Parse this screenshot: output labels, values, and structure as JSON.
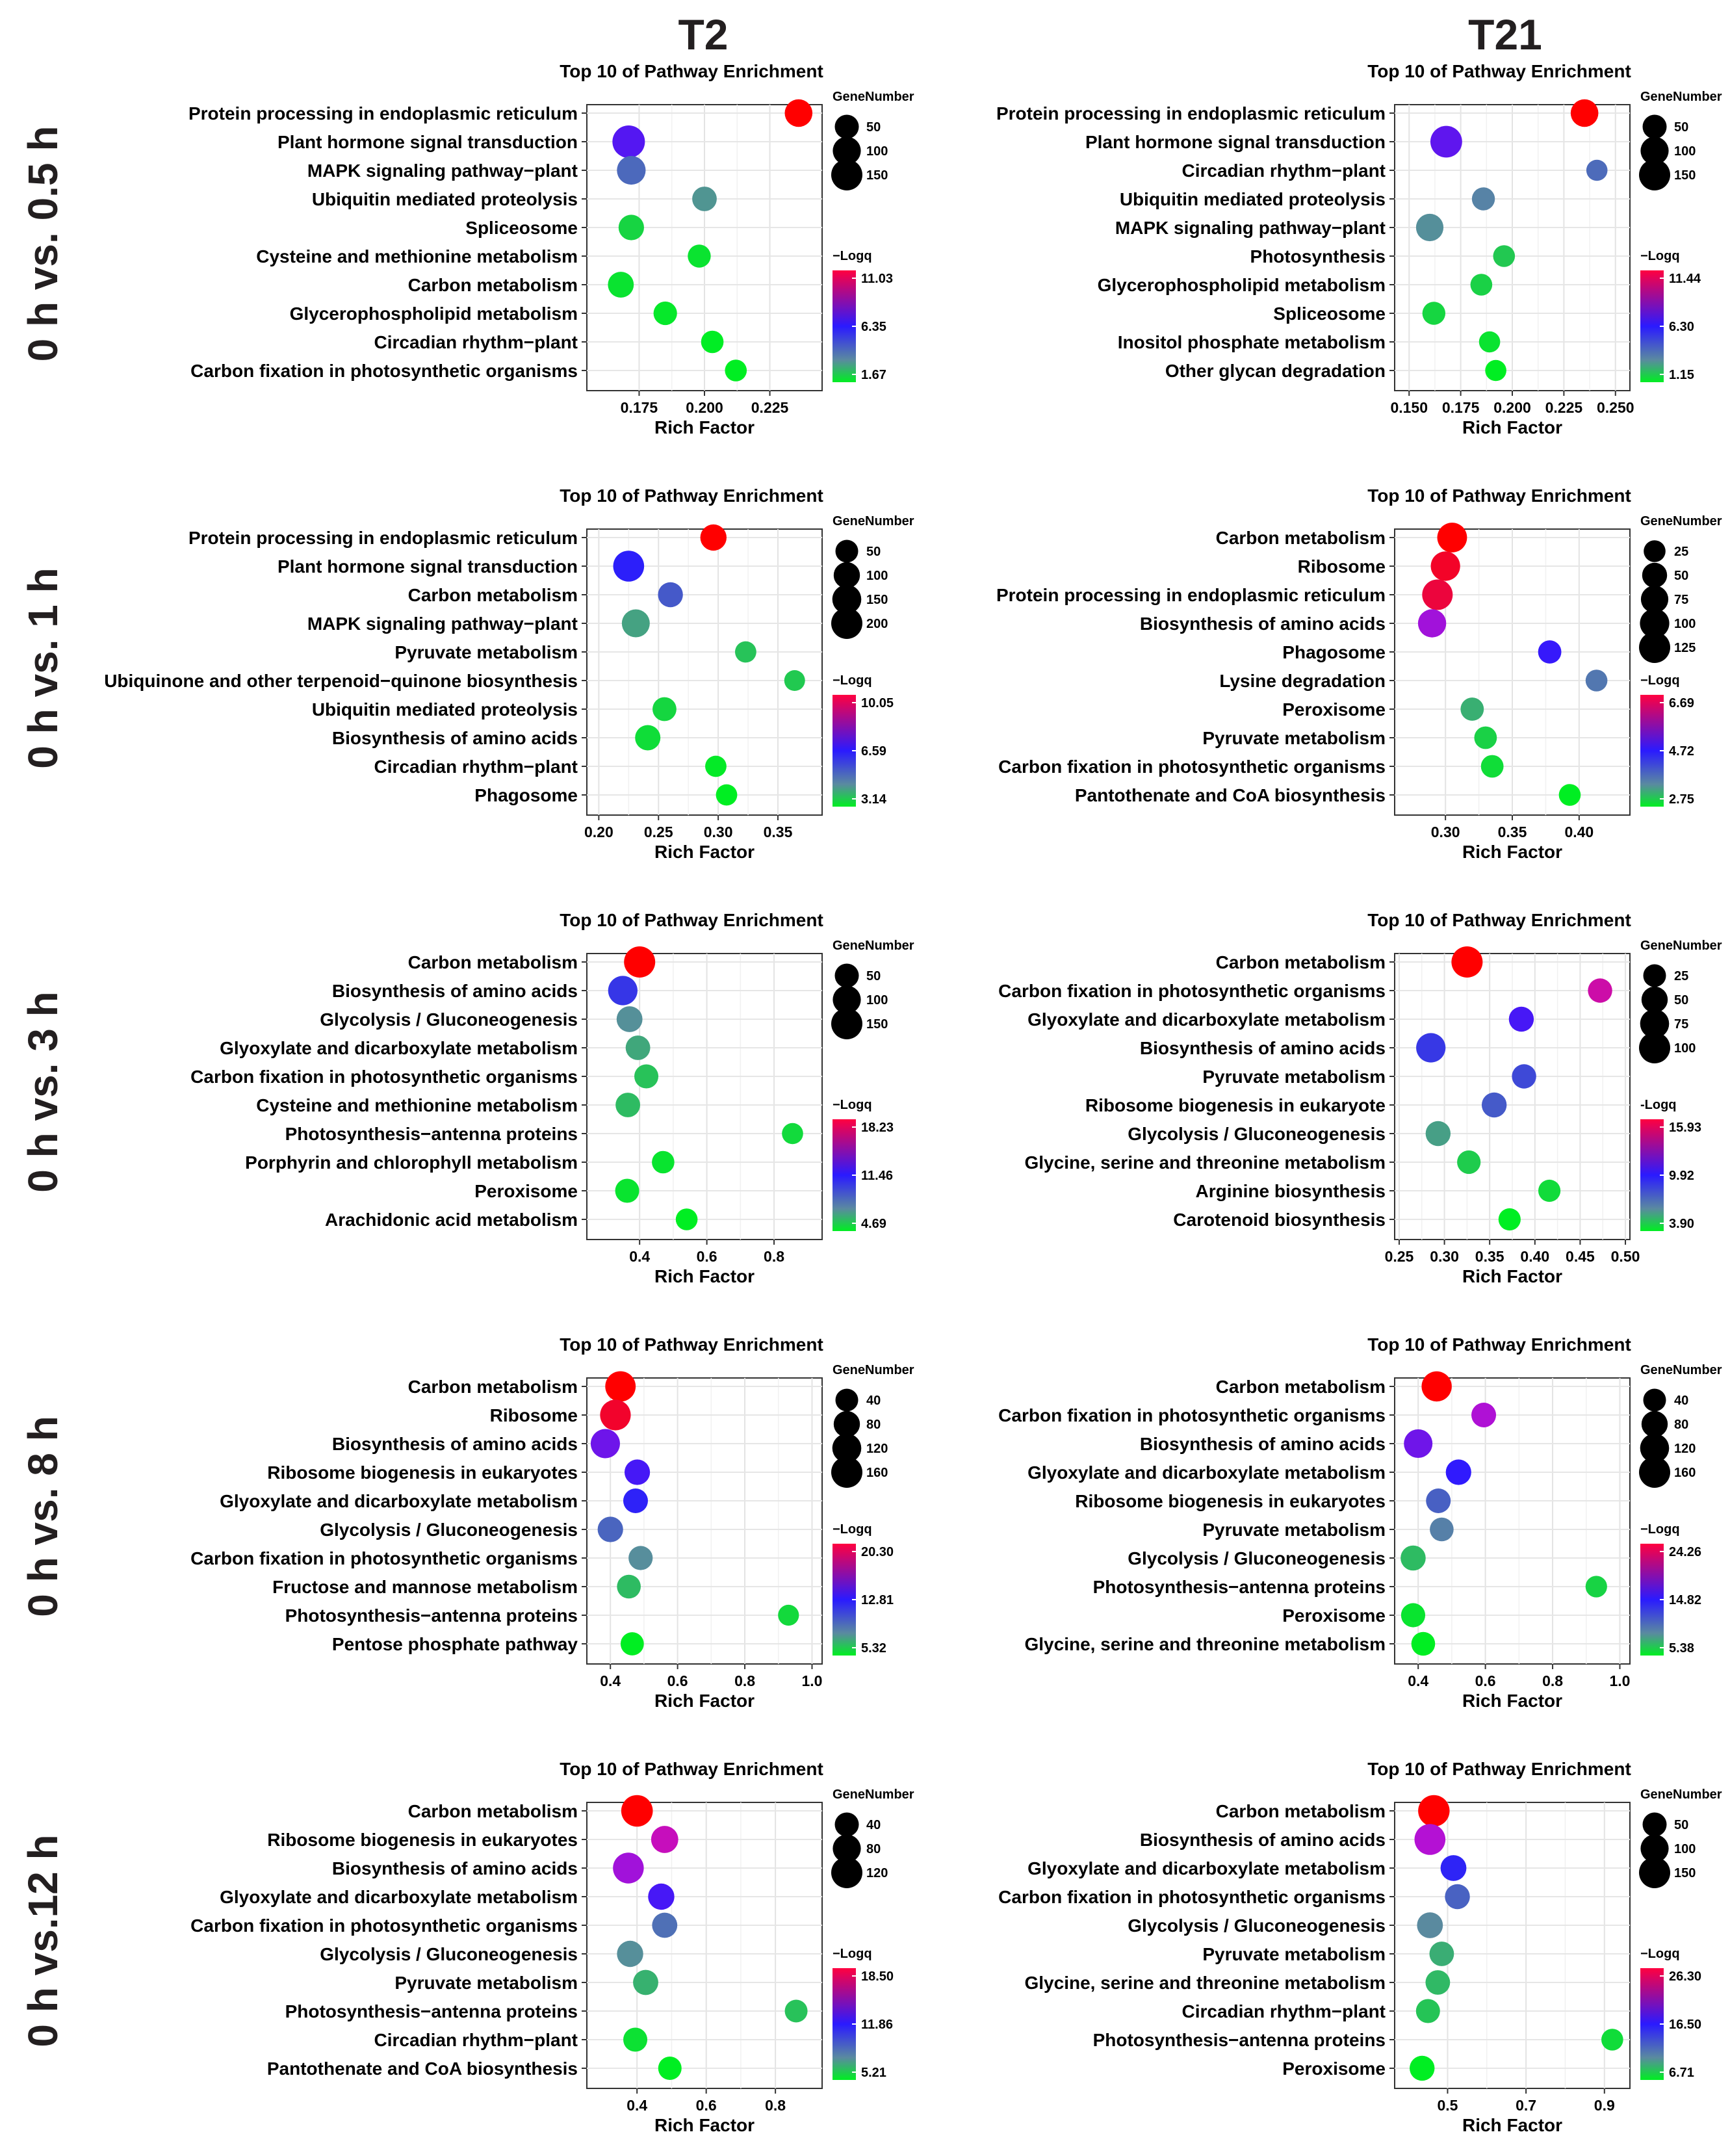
{
  "column_headers": [
    "T2",
    "T21"
  ],
  "row_labels": [
    "0 h vs. 0.5 h",
    "0 h vs. 1 h",
    "0 h vs. 3 h",
    "0 h vs. 8 h",
    "0 h vs.12 h"
  ],
  "colors": {
    "high": "#ff0000",
    "mid": "#2020ff",
    "low": "#00ee22",
    "grid": "#e6e6e6",
    "text": "#000000"
  },
  "chart_data": [
    {
      "type": "scatter",
      "title": "Top 10 of Pathway Enrichment",
      "xlabel": "Rich Factor",
      "size_legend_title": "GeneNumber",
      "color_legend_title": "−Logq",
      "xlim": [
        0.155,
        0.245
      ],
      "xticks": [
        0.175,
        0.2,
        0.225
      ],
      "xtick_labels": [
        "0.175",
        "0.200",
        "0.225"
      ],
      "size_legend": [
        50,
        100,
        150
      ],
      "color_range": [
        1.67,
        11.03
      ],
      "color_ticks": [
        "11.03",
        "6.35",
        "1.67"
      ],
      "pathways": [
        "Protein processing in endoplasmic reticulum",
        "Plant hormone signal transduction",
        "MAPK signaling pathway−plant",
        "Ubiquitin mediated proteolysis",
        "Spliceosome",
        "Cysteine and methionine metabolism",
        "Carbon metabolism",
        "Glycerophospholipid metabolism",
        "Circadian rhythm−plant",
        "Carbon fixation in photosynthetic organisms"
      ],
      "x": [
        0.236,
        0.171,
        0.172,
        0.2,
        0.172,
        0.198,
        0.168,
        0.185,
        0.203,
        0.212
      ],
      "gene_number": [
        95,
        175,
        110,
        55,
        65,
        40,
        70,
        45,
        35,
        30
      ],
      "logq": [
        11.03,
        7.0,
        4.5,
        3.5,
        2.2,
        1.9,
        1.9,
        1.8,
        1.7,
        1.67
      ]
    },
    {
      "type": "scatter",
      "title": "Top 10 of Pathway Enrichment",
      "xlabel": "Rich Factor",
      "size_legend_title": "GeneNumber",
      "color_legend_title": "−Logq",
      "xlim": [
        0.143,
        0.257
      ],
      "xticks": [
        0.15,
        0.175,
        0.2,
        0.225,
        0.25
      ],
      "xtick_labels": [
        "0.150",
        "0.175",
        "0.200",
        "0.225",
        "0.250"
      ],
      "size_legend": [
        50,
        100,
        150
      ],
      "color_range": [
        1.15,
        11.44
      ],
      "color_ticks": [
        "11.44",
        "6.30",
        "1.15"
      ],
      "pathways": [
        "Protein processing in endoplasmic reticulum",
        "Plant hormone signal transduction",
        "Circadian rhythm−plant",
        "Ubiquitin mediated proteolysis",
        "MAPK signaling pathway−plant",
        "Photosynthesis",
        "Glycerophospholipid metabolism",
        "Spliceosome",
        "Inositol phosphate metabolism",
        "Other glycan degradation"
      ],
      "x": [
        0.235,
        0.168,
        0.241,
        0.186,
        0.16,
        0.196,
        0.185,
        0.162,
        0.189,
        0.192
      ],
      "gene_number": [
        95,
        160,
        25,
        40,
        90,
        30,
        30,
        40,
        25,
        25
      ],
      "logq": [
        11.44,
        7.2,
        4.2,
        3.6,
        3.3,
        2.0,
        1.8,
        1.7,
        1.4,
        1.15
      ]
    },
    {
      "type": "scatter",
      "title": "Top 10 of Pathway Enrichment",
      "xlabel": "Rich Factor",
      "size_legend_title": "GeneNumber",
      "color_legend_title": "−Logq",
      "xlim": [
        0.19,
        0.387
      ],
      "xticks": [
        0.2,
        0.25,
        0.3,
        0.35
      ],
      "xtick_labels": [
        "0.20",
        "0.25",
        "0.30",
        "0.35"
      ],
      "size_legend": [
        50,
        100,
        150,
        200
      ],
      "color_range": [
        3.14,
        10.05
      ],
      "color_ticks": [
        "10.05",
        "6.59",
        "3.14"
      ],
      "pathways": [
        "Protein processing in endoplasmic reticulum",
        "Plant hormone signal transduction",
        "Carbon metabolism",
        "MAPK signaling pathway−plant",
        "Pyruvate metabolism",
        "Ubiquinone and other terpenoid−quinone biosynthesis",
        "Ubiquitin mediated proteolysis",
        "Biosynthesis of amino acids",
        "Circadian rhythm−plant",
        "Phagosome"
      ],
      "x": [
        0.296,
        0.225,
        0.26,
        0.231,
        0.323,
        0.364,
        0.255,
        0.241,
        0.298,
        0.307
      ],
      "gene_number": [
        100,
        195,
        80,
        130,
        35,
        30,
        65,
        85,
        35,
        35
      ],
      "logq": [
        10.05,
        6.5,
        5.5,
        4.3,
        3.8,
        3.7,
        3.5,
        3.4,
        3.2,
        3.14
      ]
    },
    {
      "type": "scatter",
      "title": "Top 10 of Pathway Enrichment",
      "xlabel": "Rich Factor",
      "size_legend_title": "GeneNumber",
      "color_legend_title": "−Logq",
      "xlim": [
        0.262,
        0.438
      ],
      "xticks": [
        0.3,
        0.35,
        0.4
      ],
      "xtick_labels": [
        "0.30",
        "0.35",
        "0.40"
      ],
      "size_legend": [
        25,
        50,
        75,
        100,
        125
      ],
      "color_range": [
        2.75,
        6.69
      ],
      "color_ticks": [
        "6.69",
        "4.72",
        "2.75"
      ],
      "pathways": [
        "Carbon metabolism",
        "Ribosome",
        "Protein processing in endoplasmic reticulum",
        "Biosynthesis of amino acids",
        "Phagosome",
        "Lysine degradation",
        "Peroxisome",
        "Pyruvate metabolism",
        "Carbon fixation in photosynthetic organisms",
        "Pantothenate and CoA biosynthesis"
      ],
      "x": [
        0.305,
        0.3,
        0.294,
        0.29,
        0.378,
        0.413,
        0.32,
        0.33,
        0.335,
        0.393
      ],
      "gene_number": [
        105,
        100,
        115,
        85,
        35,
        25,
        35,
        30,
        30,
        25
      ],
      "logq": [
        6.69,
        6.5,
        6.4,
        5.5,
        4.8,
        3.8,
        3.3,
        3.0,
        2.9,
        2.75
      ]
    },
    {
      "type": "scatter",
      "title": "Top 10 of Pathway Enrichment",
      "xlabel": "Rich Factor",
      "size_legend_title": "GeneNumber",
      "color_legend_title": "−Logq",
      "xlim": [
        0.243,
        0.943
      ],
      "xticks": [
        0.4,
        0.6,
        0.8
      ],
      "xtick_labels": [
        "0.4",
        "0.6",
        "0.8"
      ],
      "size_legend": [
        50,
        100,
        150
      ],
      "color_range": [
        4.69,
        18.23
      ],
      "color_ticks": [
        "18.23",
        "11.46",
        "4.69"
      ],
      "pathways": [
        "Carbon metabolism",
        "Biosynthesis of amino acids",
        "Glycolysis / Gluconeogenesis",
        "Glyoxylate and dicarboxylate metabolism",
        "Carbon fixation in photosynthetic organisms",
        "Cysteine and methionine metabolism",
        "Photosynthesis−antenna proteins",
        "Porphyrin and chlorophyll metabolism",
        "Peroxisome",
        "Arachidonic acid metabolism"
      ],
      "x": [
        0.4,
        0.35,
        0.37,
        0.395,
        0.42,
        0.365,
        0.855,
        0.47,
        0.363,
        0.54
      ],
      "gene_number": [
        150,
        120,
        70,
        55,
        50,
        55,
        25,
        35,
        50,
        30
      ],
      "logq": [
        18.23,
        10.5,
        7.5,
        6.8,
        6.0,
        6.2,
        5.3,
        5.0,
        5.0,
        4.69
      ]
    },
    {
      "type": "scatter",
      "title": "Top 10 of Pathway Enrichment",
      "xlabel": "Rich Factor",
      "size_legend_title": "GeneNumber",
      "color_legend_title": "-Logq",
      "xlim": [
        0.245,
        0.505
      ],
      "xticks": [
        0.25,
        0.3,
        0.35,
        0.4,
        0.45,
        0.5
      ],
      "xtick_labels": [
        "0.25",
        "0.30",
        "0.35",
        "0.40",
        "0.45",
        "0.50"
      ],
      "size_legend": [
        25,
        50,
        75,
        100
      ],
      "color_range": [
        3.9,
        15.93
      ],
      "color_ticks": [
        "15.93",
        "9.92",
        "3.90"
      ],
      "pathways": [
        "Carbon metabolism",
        "Carbon fixation in photosynthetic organisms",
        "Glyoxylate and dicarboxylate metabolism",
        "Biosynthesis of amino acids",
        "Pyruvate metabolism",
        "Ribosome biogenesis in eukaryote",
        "Glycolysis / Gluconeogenesis",
        "Glycine, serine and threonine metabolism",
        "Arginine biosynthesis",
        "Carotenoid biosynthesis"
      ],
      "x": [
        0.325,
        0.472,
        0.385,
        0.285,
        0.388,
        0.355,
        0.293,
        0.327,
        0.416,
        0.372
      ],
      "gene_number": [
        100,
        35,
        40,
        80,
        35,
        40,
        40,
        30,
        22,
        22
      ],
      "logq": [
        15.93,
        13.5,
        10.5,
        9.0,
        8.5,
        8.0,
        6.0,
        4.8,
        4.4,
        3.9
      ]
    },
    {
      "type": "scatter",
      "title": "Top 10 of Pathway Enrichment",
      "xlabel": "Rich Factor",
      "size_legend_title": "GeneNumber",
      "color_legend_title": "−Logq",
      "xlim": [
        0.33,
        1.03
      ],
      "xticks": [
        0.4,
        0.6,
        0.8,
        1.0
      ],
      "xtick_labels": [
        "0.4",
        "0.6",
        "0.8",
        "1.0"
      ],
      "size_legend": [
        40,
        80,
        120,
        160
      ],
      "color_range": [
        5.32,
        20.3
      ],
      "color_ticks": [
        "20.30",
        "12.81",
        "5.32"
      ],
      "pathways": [
        "Carbon metabolism",
        "Ribosome",
        "Biosynthesis of amino acids",
        "Ribosome biogenesis in eukaryotes",
        "Glyoxylate and dicarboxylate metabolism",
        "Glycolysis / Gluconeogenesis",
        "Carbon fixation in photosynthetic organisms",
        "Fructose and mannose metabolism",
        "Photosynthesis−antenna proteins",
        "Pentose phosphate pathway"
      ],
      "x": [
        0.43,
        0.415,
        0.385,
        0.48,
        0.475,
        0.4,
        0.49,
        0.455,
        0.93,
        0.465
      ],
      "gene_number": [
        145,
        150,
        125,
        70,
        60,
        70,
        55,
        50,
        25,
        45
      ],
      "logq": [
        20.3,
        19.5,
        14.5,
        13.5,
        12.5,
        10.0,
        8.5,
        7.0,
        6.0,
        5.32
      ]
    },
    {
      "type": "scatter",
      "title": "Top 10 of Pathway Enrichment",
      "xlabel": "Rich Factor",
      "size_legend_title": "GeneNumber",
      "color_legend_title": "−Logq",
      "xlim": [
        0.33,
        1.03
      ],
      "xticks": [
        0.4,
        0.6,
        0.8,
        1.0
      ],
      "xtick_labels": [
        "0.4",
        "0.6",
        "0.8",
        "1.0"
      ],
      "size_legend": [
        40,
        80,
        120,
        160
      ],
      "color_range": [
        5.38,
        24.26
      ],
      "color_ticks": [
        "24.26",
        "14.82",
        "5.38"
      ],
      "pathways": [
        "Carbon metabolism",
        "Carbon fixation in photosynthetic organisms",
        "Biosynthesis of amino acids",
        "Glyoxylate and dicarboxylate metabolism",
        "Ribosome biogenesis in eukaryotes",
        "Pyruvate metabolism",
        "Glycolysis / Gluconeogenesis",
        "Photosynthesis−antenna proteins",
        "Peroxisome",
        "Glycine, serine and threonine metabolism"
      ],
      "x": [
        0.455,
        0.595,
        0.4,
        0.52,
        0.46,
        0.47,
        0.385,
        0.93,
        0.385,
        0.415
      ],
      "gene_number": [
        140,
        60,
        115,
        70,
        60,
        50,
        65,
        30,
        55,
        50
      ],
      "logq": [
        24.26,
        19.0,
        17.0,
        15.0,
        11.5,
        10.0,
        7.5,
        6.5,
        5.8,
        5.38
      ]
    },
    {
      "type": "scatter",
      "title": "Top 10 of Pathway Enrichment",
      "xlabel": "Rich Factor",
      "size_legend_title": "GeneNumber",
      "color_legend_title": "−Logq",
      "xlim": [
        0.255,
        0.935
      ],
      "xticks": [
        0.4,
        0.6,
        0.8
      ],
      "xtick_labels": [
        "0.4",
        "0.6",
        "0.8"
      ],
      "size_legend": [
        40,
        80,
        120
      ],
      "color_range": [
        5.21,
        18.5
      ],
      "color_ticks": [
        "18.50",
        "11.86",
        "5.21"
      ],
      "pathways": [
        "Carbon metabolism",
        "Ribosome biogenesis in eukaryotes",
        "Biosynthesis of amino acids",
        "Glyoxylate and dicarboxylate metabolism",
        "Carbon fixation in photosynthetic organisms",
        "Glycolysis / Gluconeogenesis",
        "Pyruvate metabolism",
        "Photosynthesis−antenna proteins",
        "Circadian rhythm−plant",
        "Pantothenate and CoA biosynthesis"
      ],
      "x": [
        0.4,
        0.48,
        0.375,
        0.47,
        0.48,
        0.38,
        0.425,
        0.86,
        0.395,
        0.495
      ],
      "gene_number": [
        125,
        70,
        115,
        60,
        50,
        60,
        50,
        30,
        40,
        35
      ],
      "logq": [
        18.5,
        15.5,
        14.5,
        12.5,
        9.0,
        8.0,
        7.0,
        6.5,
        5.6,
        5.21
      ]
    },
    {
      "type": "scatter",
      "title": "Top 10 of Pathway Enrichment",
      "xlabel": "Rich Factor",
      "size_legend_title": "GeneNumber",
      "color_legend_title": "−Logq",
      "xlim": [
        0.365,
        0.965
      ],
      "xticks": [
        0.5,
        0.7,
        0.9
      ],
      "xtick_labels": [
        "0.5",
        "0.7",
        "0.9"
      ],
      "size_legend": [
        50,
        100,
        150
      ],
      "color_range": [
        6.71,
        26.3
      ],
      "color_ticks": [
        "26.30",
        "16.50",
        "6.71"
      ],
      "pathways": [
        "Carbon metabolism",
        "Biosynthesis of amino acids",
        "Glyoxylate and dicarboxylate metabolism",
        "Carbon fixation in photosynthetic organisms",
        "Glycolysis / Gluconeogenesis",
        "Pyruvate metabolism",
        "Glycine, serine and threonine metabolism",
        "Circadian rhythm−plant",
        "Photosynthesis−antenna proteins",
        "Peroxisome"
      ],
      "x": [
        0.465,
        0.455,
        0.515,
        0.525,
        0.455,
        0.485,
        0.475,
        0.45,
        0.92,
        0.435
      ],
      "gene_number": [
        155,
        145,
        70,
        60,
        70,
        55,
        55,
        50,
        30,
        60
      ],
      "logq": [
        26.3,
        21.0,
        16.0,
        13.0,
        11.0,
        9.5,
        9.0,
        8.5,
        7.5,
        6.71
      ]
    }
  ]
}
